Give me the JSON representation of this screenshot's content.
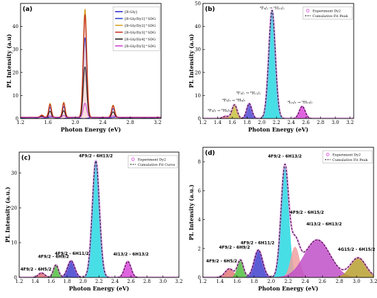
{
  "chart_data": [
    {
      "id": "a",
      "panel_label": "(a)",
      "type": "line",
      "xlabel": "Photon Energy (eV)",
      "ylabel": "PL Intensity (a.u)",
      "xlim": [
        1.2,
        3.25
      ],
      "ylim": [
        0,
        50
      ],
      "xticks": [
        1.2,
        1.6,
        2.0,
        2.4,
        2.8,
        3.2
      ],
      "xtick_labels": [
        "1.2",
        "1.6",
        "2.0",
        "2.4",
        "2.8",
        "3.2"
      ],
      "yticks": [
        0,
        10,
        20,
        30,
        40
      ],
      "ytick_labels": [
        "0",
        "10",
        "20",
        "30",
        "40"
      ],
      "legend_position": "top-right",
      "series": [
        {
          "name": "[B-Gly]",
          "color": "#1c1ccc",
          "scale": 0.0,
          "baseline": 0.3
        },
        {
          "name": "[B-Gly/Dy1]^SDG",
          "color": "#2035c8",
          "scale": 0.74,
          "baseline": 0.4
        },
        {
          "name": "[B-Gly/Dy2]^SDG",
          "color": "#d49a14",
          "scale": 1.0,
          "baseline": 0.5
        },
        {
          "name": "[B-Gly/Dy3]^SDG",
          "color": "#c22a1a",
          "scale": 0.95,
          "baseline": 0.5
        },
        {
          "name": "[B-Gly/Dy4]^SDG",
          "color": "#111111",
          "scale": 0.47,
          "baseline": 0.4
        },
        {
          "name": "[B-Gly/Dy5]^SDG",
          "color": "#cc33cc",
          "scale": 0.13,
          "baseline": 0.5
        }
      ]
    },
    {
      "id": "b",
      "panel_label": "(b)",
      "type": "area",
      "xlabel": "Photon Energy (eV)",
      "ylabel": "PL Intensity (a.u)",
      "xlim": [
        1.2,
        3.25
      ],
      "ylim": [
        0,
        50
      ],
      "xticks": [
        1.2,
        1.4,
        1.6,
        1.8,
        2.0,
        2.2,
        2.4,
        2.6,
        2.8,
        3.0,
        3.2
      ],
      "xtick_labels": [
        "1.2",
        "1.4",
        "1.6",
        "1.8",
        "2.0",
        "2.2",
        "2.4",
        "2.6",
        "2.8",
        "3.0",
        "3.2"
      ],
      "yticks": [
        0,
        10,
        20,
        30,
        40,
        50
      ],
      "ytick_labels": [
        "0",
        "10",
        "20",
        "30",
        "40",
        "50"
      ],
      "legend": [
        "Experiment Dy2",
        "Cumulative Fit Peak"
      ],
      "legend_position": "top-right",
      "peaks": [
        {
          "center": 1.51,
          "height": 1.0,
          "width": 0.04,
          "color": "#e07878"
        },
        {
          "center": 1.63,
          "height": 6.0,
          "width": 0.035,
          "color": "#c8c23c"
        },
        {
          "center": 1.83,
          "height": 6.5,
          "width": 0.035,
          "color": "#4a4ad0"
        },
        {
          "center": 2.14,
          "height": 47.0,
          "width": 0.045,
          "color": "#28d8e0"
        },
        {
          "center": 2.55,
          "height": 5.3,
          "width": 0.04,
          "color": "#d848d8"
        }
      ],
      "annotations": [
        {
          "text": "⁴F₉/₂ → ⁶H₁₃/₂",
          "x": 2.14,
          "y": 47.5
        },
        {
          "text": "⁴F₉/₂ → ⁶H₁₁/₂",
          "x": 1.82,
          "y": 10.5
        },
        {
          "text": "⁴F₉/₂ → ⁶H₉/₂",
          "x": 1.62,
          "y": 7.5
        },
        {
          "text": "⁴F₉/₂ → ⁶H₅/₂",
          "x": 1.42,
          "y": 3.0
        },
        {
          "text": "⁴I₁₃/₂ → ⁶H₁₃/₂",
          "x": 2.52,
          "y": 6.5
        }
      ]
    },
    {
      "id": "c",
      "panel_label": "(c)",
      "type": "area",
      "xlabel": "Photon Energy (eV)",
      "ylabel": "PL Intensity (a.u.)",
      "xlim": [
        1.2,
        3.2
      ],
      "ylim": [
        0,
        36
      ],
      "xticks": [
        1.2,
        1.4,
        1.6,
        1.8,
        2.0,
        2.2,
        2.4,
        2.6,
        2.8,
        3.0,
        3.2
      ],
      "xtick_labels": [
        "1.2",
        "1.4",
        "1.6",
        "1.8",
        "2.0",
        "2.2",
        "2.4",
        "2.6",
        "2.8",
        "3.0",
        "3.2"
      ],
      "yticks": [
        0,
        10,
        20,
        30
      ],
      "ytick_labels": [
        "0",
        "10",
        "20",
        "30"
      ],
      "legend": [
        "Experiment Dy2",
        "Cumulative Fit Curve"
      ],
      "legend_position": "top-right",
      "peaks": [
        {
          "center": 1.48,
          "height": 1.3,
          "width": 0.04,
          "color": "#e07070"
        },
        {
          "center": 1.66,
          "height": 3.6,
          "width": 0.032,
          "color": "#50c040"
        },
        {
          "center": 1.85,
          "height": 4.8,
          "width": 0.045,
          "color": "#4040cc"
        },
        {
          "center": 2.16,
          "height": 33.5,
          "width": 0.045,
          "color": "#28d8e0"
        },
        {
          "center": 2.56,
          "height": 4.6,
          "width": 0.04,
          "color": "#d848d8"
        }
      ],
      "annotations": [
        {
          "text": "4F9/2 - 6H13/2",
          "x": 2.16,
          "y": 34.5
        },
        {
          "text": "4F9/2 - 6H11/2",
          "x": 1.86,
          "y": 6.5
        },
        {
          "text": "4F9/2 - 6H9/2",
          "x": 1.63,
          "y": 5.6
        },
        {
          "text": "4F9/2 - 6H5/2",
          "x": 1.41,
          "y": 2.0
        },
        {
          "text": "4I13/2 - 6H13/2",
          "x": 2.6,
          "y": 6.3
        }
      ]
    },
    {
      "id": "d",
      "panel_label": "(d)",
      "type": "area",
      "xlabel": "Photon Energy (eV)",
      "ylabel": "PL Intensity (a.u.)",
      "xlim": [
        1.2,
        3.2
      ],
      "ylim": [
        0,
        9
      ],
      "xticks": [
        1.2,
        1.4,
        1.6,
        1.8,
        2.0,
        2.2,
        2.4,
        2.6,
        2.8,
        3.0,
        3.2
      ],
      "xtick_labels": [
        "1.2",
        "1.4",
        "1.6",
        "1.8",
        "2.0",
        "2.2",
        "2.4",
        "2.6",
        "2.8",
        "3.0",
        "3.2"
      ],
      "yticks": [
        0,
        2,
        4,
        6,
        8
      ],
      "ytick_labels": [
        "0",
        "2",
        "4",
        "6",
        "8"
      ],
      "legend": [
        "Experiment Dy2",
        "Cumulative Fit Peak"
      ],
      "legend_position": "top-right",
      "peaks": [
        {
          "center": 1.51,
          "height": 0.6,
          "width": 0.05,
          "color": "#e07878"
        },
        {
          "center": 1.64,
          "height": 1.2,
          "width": 0.035,
          "color": "#50c040"
        },
        {
          "center": 1.85,
          "height": 1.9,
          "width": 0.05,
          "color": "#4040cc"
        },
        {
          "center": 2.16,
          "height": 7.6,
          "width": 0.045,
          "color": "#28d8e0"
        },
        {
          "center": 2.28,
          "height": 2.1,
          "width": 0.05,
          "color": "#f0a0a0"
        },
        {
          "center": 2.54,
          "height": 2.6,
          "width": 0.15,
          "color": "#c050c8"
        },
        {
          "center": 3.02,
          "height": 1.35,
          "width": 0.09,
          "color": "#b8a030"
        }
      ],
      "annotations": [
        {
          "text": "4F9/2 - 6H13/2",
          "x": 2.16,
          "y": 8.3
        },
        {
          "text": "4F9/2 - 6H15/2",
          "x": 2.42,
          "y": 4.4
        },
        {
          "text": "4I13/2 - 6H13/2",
          "x": 2.62,
          "y": 3.6
        },
        {
          "text": "4F9/2 - 6H11/2",
          "x": 1.84,
          "y": 2.3
        },
        {
          "text": "4F9/2 - 6H9/2",
          "x": 1.57,
          "y": 2.0
        },
        {
          "text": "4F9/2 - 6H5/2",
          "x": 1.42,
          "y": 1.05
        },
        {
          "text": "4G15/2 - 6H15/2",
          "x": 3.0,
          "y": 1.85
        }
      ]
    }
  ]
}
